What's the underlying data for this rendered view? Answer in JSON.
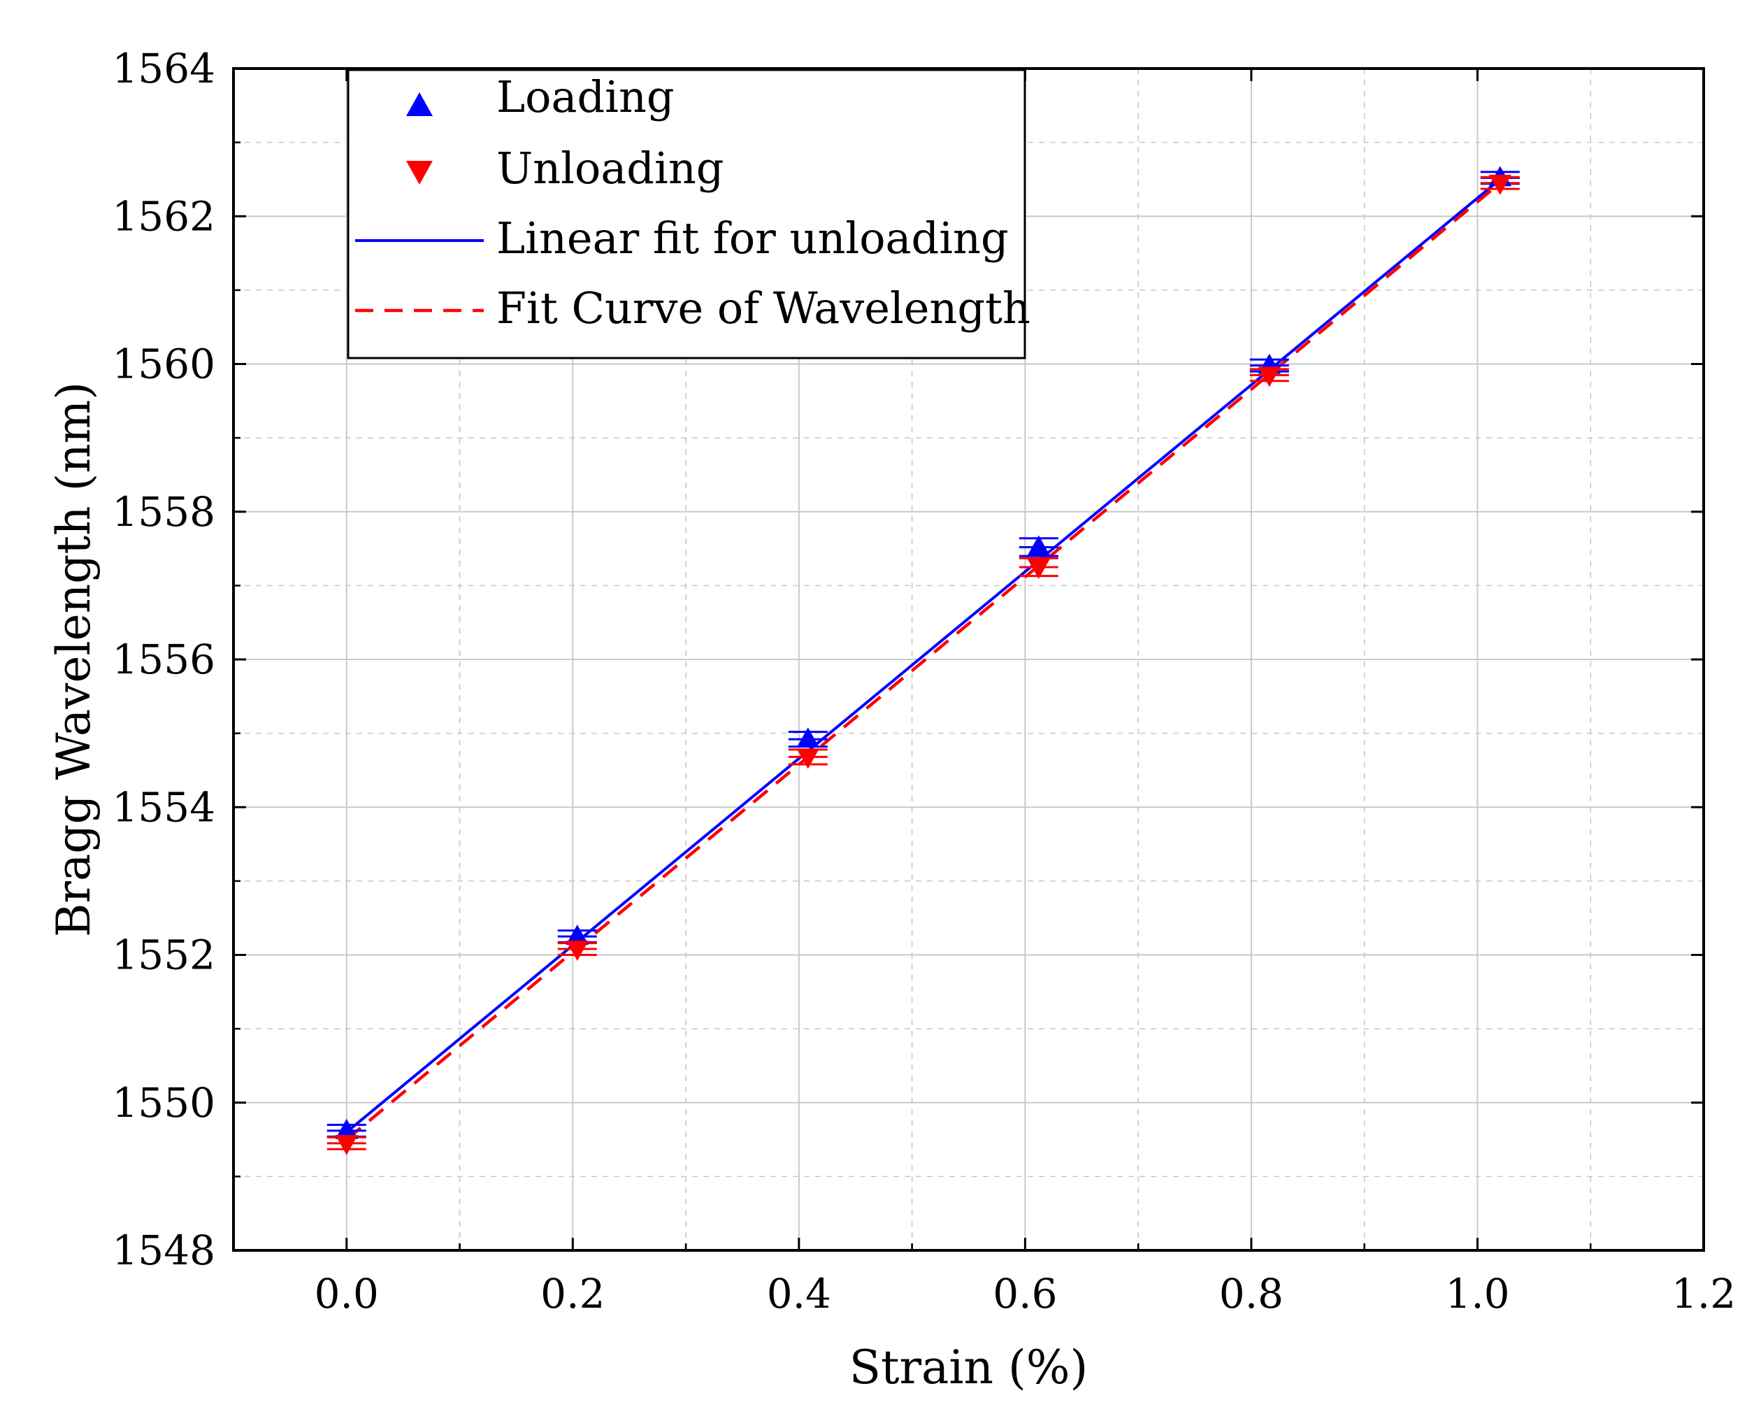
{
  "chart_data": {
    "type": "scatter",
    "title": "",
    "xlabel": "Strain (%)",
    "ylabel": "Bragg Wavelength (nm)",
    "xlim": [
      -0.1,
      1.2
    ],
    "ylim": [
      1548,
      1564
    ],
    "x_ticks": [
      "0.0",
      "0.2",
      "0.4",
      "0.6",
      "0.8",
      "1.0",
      "1.2"
    ],
    "y_ticks": [
      "1548",
      "1550",
      "1552",
      "1554",
      "1556",
      "1558",
      "1560",
      "1562",
      "1564"
    ],
    "grid": true,
    "legend_position": "top-left",
    "colors": {
      "loading": "#0000ff",
      "unloading": "#ff0000",
      "linear_fit": "#0000ff",
      "fit_curve": "#ff0000",
      "grid": "#c8c8c8",
      "axis": "#000000"
    },
    "series": [
      {
        "name": "Loading",
        "kind": "marker",
        "marker": "triangle-up",
        "x": [
          0.0,
          0.204,
          0.408,
          0.612,
          0.816,
          1.02
        ],
        "y": [
          1549.62,
          1552.25,
          1554.92,
          1557.52,
          1559.98,
          1562.52
        ],
        "error": [
          0.08,
          0.08,
          0.1,
          0.12,
          0.08,
          0.08
        ]
      },
      {
        "name": "Unloading",
        "kind": "marker",
        "marker": "triangle-down",
        "x": [
          0.0,
          0.204,
          0.408,
          0.612,
          0.816,
          1.02
        ],
        "y": [
          1549.45,
          1552.08,
          1554.68,
          1557.25,
          1559.85,
          1562.45
        ],
        "error": [
          0.08,
          0.08,
          0.1,
          0.12,
          0.08,
          0.08
        ]
      },
      {
        "name": "Linear fit for unloading",
        "kind": "line",
        "style": "solid",
        "x": [
          0.0,
          1.02
        ],
        "y": [
          1549.6,
          1562.5
        ]
      },
      {
        "name": "Fit Curve of Wavelength",
        "kind": "line",
        "style": "dashed",
        "x": [
          0.0,
          1.02
        ],
        "y": [
          1549.5,
          1562.45
        ]
      }
    ]
  }
}
